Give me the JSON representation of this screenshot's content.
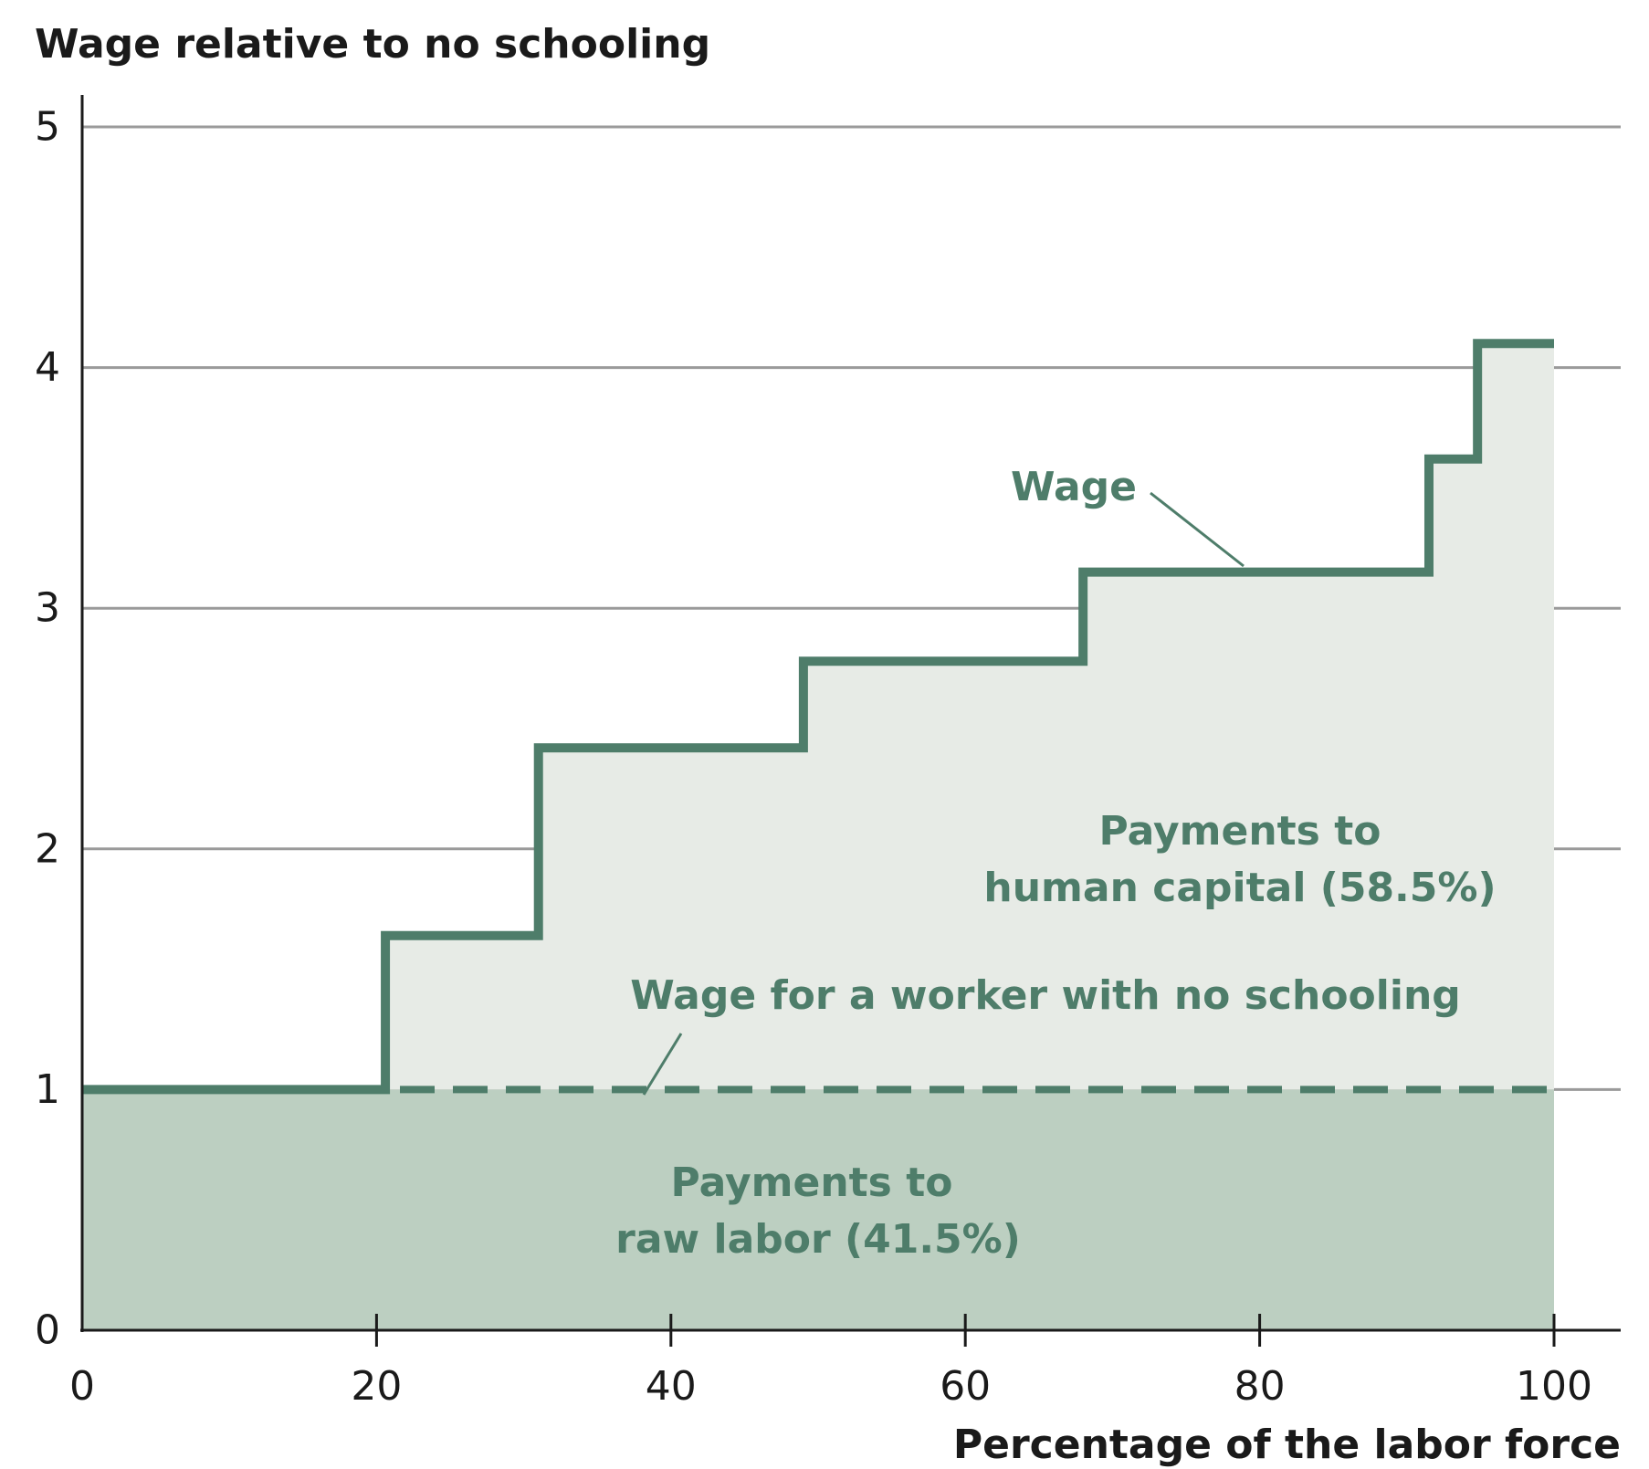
{
  "chart_data": {
    "type": "line",
    "step": true,
    "ylabel": "Wage relative to no schooling",
    "xlabel": "Percentage of the labor force",
    "xlim": [
      0,
      100
    ],
    "ylim": [
      0,
      5
    ],
    "xticks": [
      0,
      20,
      40,
      60,
      80,
      100
    ],
    "yticks": [
      0,
      1,
      2,
      3,
      4,
      5
    ],
    "grid": "horizontal",
    "series": [
      {
        "name": "Wage",
        "x": [
          0,
          20.6,
          20.6,
          31.0,
          31.0,
          49.0,
          49.0,
          68.0,
          68.0,
          91.5,
          91.5,
          94.8,
          94.8,
          100
        ],
        "y": [
          1.0,
          1.0,
          1.64,
          1.64,
          2.42,
          2.42,
          2.78,
          2.78,
          3.15,
          3.15,
          3.62,
          3.62,
          4.1,
          4.1
        ]
      },
      {
        "name": "Wage for a worker with no schooling",
        "x": [
          0,
          100
        ],
        "y": [
          1,
          1
        ],
        "style": "dashed"
      }
    ],
    "areas": [
      {
        "label": "Payments to raw labor (41.5%)",
        "share": 41.5,
        "from_y": 0,
        "to_y": 1
      },
      {
        "label": "Payments to human capital (58.5%)",
        "share": 58.5,
        "from": "no-schooling wage",
        "to": "wage"
      }
    ],
    "annotations": {
      "wage": "Wage",
      "no_schooling": "Wage for a worker with no schooling",
      "human_capital_line1": "Payments to",
      "human_capital_line2": "human capital (58.5%)",
      "raw_labor_line1": "Payments to",
      "raw_labor_line2": "raw labor (41.5%)"
    },
    "colors": {
      "wage_line": "#4e7d6a",
      "annotation_text": "#4e7d6a",
      "human_capital_fill": "#e7ebe6",
      "raw_labor_fill": "#bccfc1",
      "gridline": "#9a9a9a",
      "axis": "#1a1a1a"
    }
  }
}
